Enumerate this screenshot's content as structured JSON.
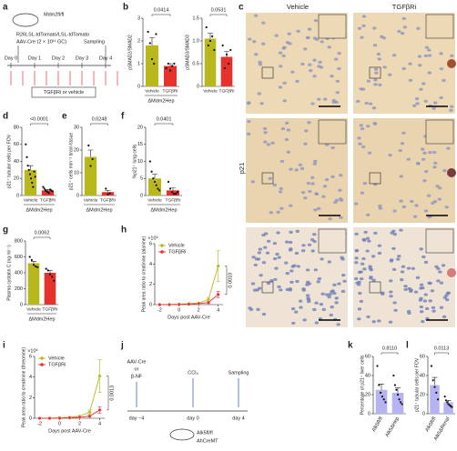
{
  "chart_data": [
    {
      "type": "bar",
      "panel": "b",
      "pvalue": "0.0414",
      "ylabel": "pSMAD2/SMAD2",
      "group_label": "ΔMdm2Hep",
      "categories": [
        "Vehicle",
        "TGFβRi"
      ],
      "values": [
        1.8,
        0.9
      ],
      "errors": [
        0.35,
        0.1
      ],
      "points": [
        [
          2.4,
          1.9,
          1.2,
          1.0,
          2.3
        ],
        [
          0.8,
          1.0,
          0.7,
          0.9,
          1.0
        ]
      ],
      "colors": [
        "#b8b81c",
        "#e5322d"
      ],
      "ylim": [
        0,
        3
      ],
      "yticks": [
        0,
        1,
        2,
        3
      ]
    },
    {
      "type": "bar",
      "pvalue": "0.0531",
      "ylabel": "pSMAD3/SMAD3",
      "categories": [
        "Vehicle",
        "TGFβRi"
      ],
      "values": [
        1.05,
        0.65
      ],
      "errors": [
        0.12,
        0.12
      ],
      "points": [
        [
          1.3,
          0.9,
          1.0,
          1.1,
          0.8
        ],
        [
          0.9,
          0.4,
          0.7,
          0.5,
          0.8
        ]
      ],
      "colors": [
        "#b8b81c",
        "#e5322d"
      ],
      "ylim": [
        0,
        1.5
      ],
      "yticks": [
        0,
        0.5,
        {
          "value": 1,
          "label": "1.0"
        },
        1.5
      ]
    },
    {
      "type": "bar",
      "panel": "d",
      "pvalue": "<0.0001",
      "ylabel": "p21⁺ tubular cells per FOV",
      "group_label": "ΔMdm2Hep",
      "categories": [
        "Vehicle",
        "TGFβRi"
      ],
      "values": [
        30,
        6
      ],
      "errors": [
        5,
        1
      ],
      "points": [
        [
          60,
          45,
          35,
          30,
          25,
          20,
          15,
          10,
          28,
          22
        ],
        [
          10,
          8,
          6,
          5,
          4,
          3,
          7,
          6,
          5
        ]
      ],
      "colors": [
        "#b8b81c",
        "#e5322d"
      ],
      "ylim": [
        0,
        80
      ],
      "yticks": [
        0,
        20,
        40,
        60,
        80
      ]
    },
    {
      "type": "bar",
      "panel": "e",
      "pvalue": "0.0248",
      "ylabel": "p21⁺ cells mm⁻² brain tissue",
      "group_label": "ΔMdm2Hep",
      "categories": [
        "Vehicle",
        "TGFβRi"
      ],
      "values": [
        17,
        1.5
      ],
      "errors": [
        3,
        0.8
      ],
      "points": [
        [
          22,
          13,
          16
        ],
        [
          3,
          0.5,
          1
        ]
      ],
      "colors": [
        "#b8b81c",
        "#e5322d"
      ],
      "ylim": [
        0,
        30
      ],
      "yticks": [
        0,
        10,
        20,
        30
      ]
    },
    {
      "type": "bar",
      "panel": "f",
      "pvalue": "0.0401",
      "ylabel": "%p21⁺ lung cells",
      "group_label": "ΔMdm2Hep",
      "categories": [
        "Vehicle",
        "TGFβRi"
      ],
      "values": [
        5,
        1.5
      ],
      "errors": [
        1.3,
        0.7
      ],
      "points": [
        [
          10,
          7,
          5,
          4,
          3,
          2,
          1.5
        ],
        [
          4,
          2,
          1,
          0.5,
          0.5,
          1
        ]
      ],
      "colors": [
        "#b8b81c",
        "#e5322d"
      ],
      "ylim": [
        0,
        20
      ],
      "yticks": [
        0,
        5,
        10,
        15,
        20
      ]
    },
    {
      "type": "bar",
      "panel": "g",
      "pvalue": "0.0062",
      "ylabel": "Plasma cystatin C (ng ml⁻¹)",
      "group_label": "ΔMdm2Hep",
      "categories": [
        "Vehicle",
        "TGFβRi"
      ],
      "values": [
        520,
        400
      ],
      "errors": [
        25,
        30
      ],
      "points": [
        [
          600,
          560,
          500,
          480,
          470
        ],
        [
          450,
          430,
          380,
          350,
          300
        ]
      ],
      "colors": [
        "#b8b81c",
        "#e5322d"
      ],
      "ylim": [
        0,
        800
      ],
      "yticks": [
        0,
        200,
        400,
        600,
        800
      ]
    },
    {
      "type": "line",
      "panel": "h",
      "ylabel": "Peak area ratio to creatinine (alanine)",
      "xlabel": "Days post AAV-Cre",
      "multiplier": "×10⁶",
      "pvalue": "0.0010",
      "x": [
        -2,
        -1,
        0,
        1,
        2,
        3,
        4
      ],
      "series": [
        {
          "name": "Vehicle",
          "color": "#b8b81c",
          "values": [
            0,
            0,
            0.05,
            0.1,
            0.15,
            0.5,
            3.8
          ],
          "errors": [
            0,
            0,
            0,
            0,
            0,
            0.2,
            1.5
          ]
        },
        {
          "name": "TGFβRi",
          "color": "#e5322d",
          "values": [
            0,
            0,
            0.02,
            0.05,
            0.1,
            0.2,
            1.0
          ],
          "errors": [
            0,
            0,
            0,
            0,
            0,
            0.1,
            0.3
          ]
        }
      ],
      "xlim": [
        -2.5,
        4.5
      ],
      "xticks": [
        -2,
        0,
        2,
        4
      ],
      "ylim": [
        0,
        6
      ],
      "yticks": [
        0,
        2,
        4,
        6
      ]
    },
    {
      "type": "line",
      "panel": "i",
      "ylabel": "Peak area ratio to creatinine (threonine)",
      "xlabel": "Days post AAV-Cre",
      "multiplier": "×10⁶",
      "pvalue": "0.0013",
      "x": [
        -2,
        -1,
        0,
        1,
        2,
        3,
        4
      ],
      "series": [
        {
          "name": "Vehicle",
          "color": "#b8b81c",
          "values": [
            0,
            0,
            0.05,
            0.1,
            0.2,
            0.6,
            4.1
          ],
          "errors": [
            0,
            0,
            0,
            0,
            0,
            0.2,
            1.6
          ]
        },
        {
          "name": "TGFβRi",
          "color": "#e5322d",
          "values": [
            0,
            0,
            0.02,
            0.05,
            0.1,
            0.2,
            0.8
          ],
          "errors": [
            0,
            0,
            0,
            0,
            0,
            0.1,
            0.3
          ]
        }
      ],
      "xlim": [
        -2.5,
        4.5
      ],
      "xticks": [
        -2,
        0,
        2,
        4
      ],
      "ylim": [
        0,
        6
      ],
      "yticks": [
        0,
        2,
        4,
        6
      ]
    },
    {
      "type": "bar",
      "panel": "k",
      "pvalue": "0.8110",
      "ylabel": "Percentage of p21⁺ liver cells",
      "categories": [
        "Alk5fl/fl",
        "Alk5ΔHep"
      ],
      "values": [
        25,
        22
      ],
      "errors": [
        6,
        5
      ],
      "points": [
        [
          50,
          30,
          22,
          18,
          15,
          12
        ],
        [
          40,
          30,
          25,
          20,
          15,
          12,
          10
        ]
      ],
      "colors": [
        "#b6b3f2",
        "#b6b3f2"
      ],
      "ylim": [
        0,
        60
      ],
      "yticks": [
        0,
        20,
        40,
        60
      ]
    },
    {
      "type": "bar",
      "panel": "l",
      "pvalue": "0.0113",
      "ylabel": "p21⁺ tubular cells per FOV",
      "categories": [
        "Alk5fl/fl",
        "Alk5ΔRenal"
      ],
      "values": [
        30,
        12
      ],
      "errors": [
        8,
        2
      ],
      "points": [
        [
          50,
          35,
          28,
          22,
          15
        ],
        [
          18,
          14,
          12,
          10,
          9,
          8,
          7
        ]
      ],
      "colors": [
        "#b6b3f2",
        "#b6b3f2"
      ],
      "ylim": [
        0,
        60
      ],
      "yticks": [
        0,
        20,
        40,
        60
      ]
    }
  ],
  "diagram_a": {
    "panel": "a",
    "mouse_genotype": "Mdm2fl/fl",
    "reporter": "R26LSL-tdTomato/LSL-tdTomato",
    "injection": "AAV-Cre (2 × 10¹¹ GC)",
    "sampling": "Sampling",
    "days": [
      "Day 0",
      "Day 1",
      "Day 2",
      "Day 3",
      "Day 4"
    ],
    "treatment": "TGFβRi or vehicle"
  },
  "diagram_j": {
    "panel": "j",
    "step1": [
      "AAV-Cre",
      "or",
      "β-NF"
    ],
    "step2": "CCl₄",
    "step3": "Sampling",
    "days": [
      "day −4",
      "day 0",
      "day 4"
    ],
    "genotype": [
      "Alk5fl/fl",
      "AhCreMT"
    ]
  },
  "micrographs_c": {
    "panel": "c",
    "columns": [
      "Vehicle",
      "TGFβRi"
    ],
    "row_label": "p21"
  }
}
